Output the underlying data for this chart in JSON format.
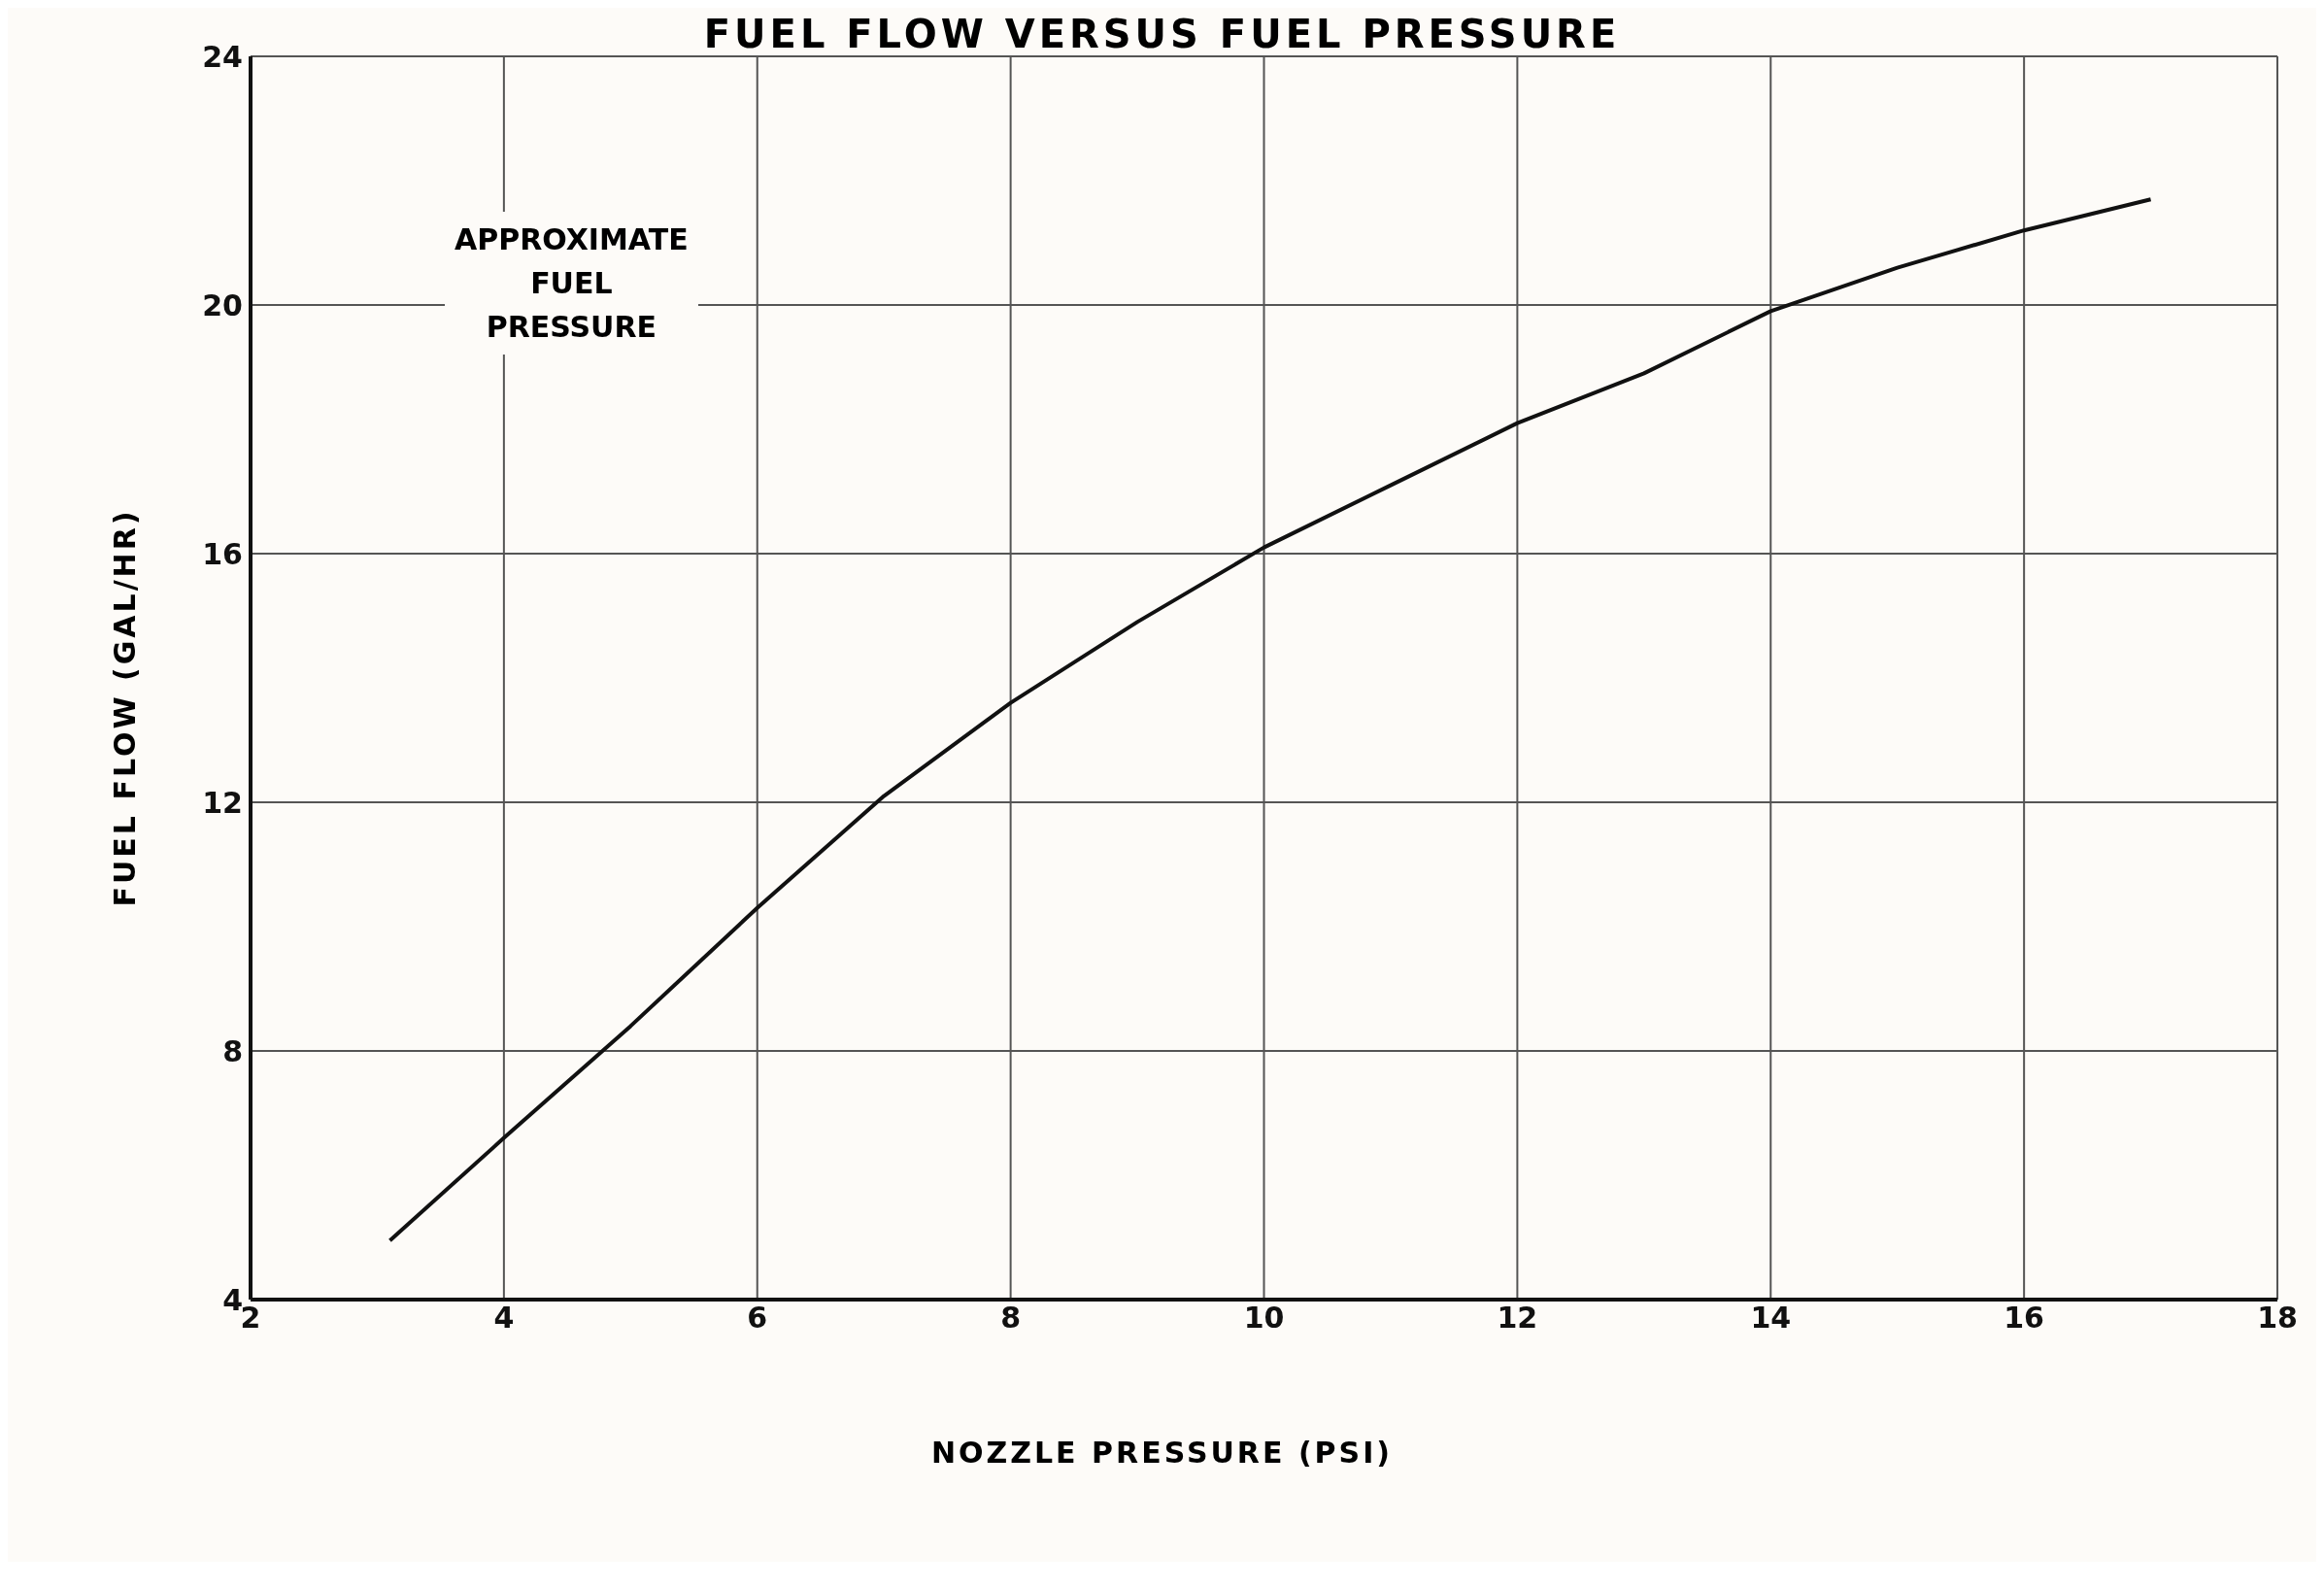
{
  "chart_data": {
    "type": "line",
    "title": "FUEL FLOW VERSUS FUEL PRESSURE",
    "xlabel": "NOZZLE PRESSURE (PSI)",
    "ylabel": "FUEL FLOW (GAL/HR)",
    "annotations": [
      "APPROXIMATE\nFUEL\nPRESSURE"
    ],
    "x": [
      3.1,
      4,
      5,
      6,
      7,
      8,
      9,
      10,
      11,
      12,
      13,
      14,
      15,
      16,
      17
    ],
    "series": [
      {
        "color": "#111111",
        "values": [
          4.95,
          6.6,
          8.4,
          10.3,
          12.1,
          13.6,
          14.9,
          16.1,
          17.1,
          18.1,
          18.9,
          19.9,
          20.6,
          21.2,
          21.7
        ]
      }
    ],
    "xlim": [
      2,
      18
    ],
    "xticks": [
      2,
      4,
      6,
      8,
      10,
      12,
      14,
      16,
      18
    ],
    "ylim": [
      4,
      24
    ],
    "yticks": [
      4,
      8,
      12,
      16,
      20,
      24
    ],
    "grid": true,
    "marker": "none",
    "line_style": "solid"
  }
}
